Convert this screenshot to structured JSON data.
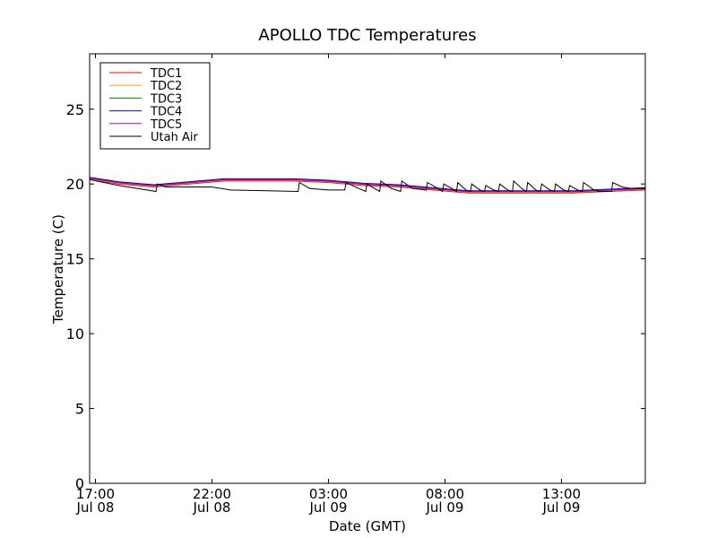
{
  "chart_data": {
    "type": "line",
    "title": "APOLLO TDC Temperatures",
    "xlabel": "Date (GMT)",
    "ylabel": "Temperature (C)",
    "ylim": [
      0,
      28.7
    ],
    "xlim_hours": [
      16.75,
      40.6
    ],
    "y_ticks": [
      0,
      5,
      10,
      15,
      20,
      25
    ],
    "x_ticks": [
      {
        "hour": 17,
        "label1": "17:00",
        "label2": "Jul 08"
      },
      {
        "hour": 22,
        "label1": "22:00",
        "label2": "Jul 08"
      },
      {
        "hour": 27,
        "label1": "03:00",
        "label2": "Jul 09"
      },
      {
        "hour": 32,
        "label1": "08:00",
        "label2": "Jul 09"
      },
      {
        "hour": 37,
        "label1": "13:00",
        "label2": "Jul 09"
      }
    ],
    "legend_position": "top-left",
    "series": [
      {
        "name": "TDC1",
        "color": "#ff0000",
        "points": [
          [
            16.75,
            20.3
          ],
          [
            18,
            20.0
          ],
          [
            19.5,
            19.8
          ],
          [
            21,
            20.0
          ],
          [
            22.5,
            20.2
          ],
          [
            24,
            20.2
          ],
          [
            25.5,
            20.2
          ],
          [
            27,
            20.1
          ],
          [
            28.5,
            19.9
          ],
          [
            30,
            19.8
          ],
          [
            31.5,
            19.6
          ],
          [
            33,
            19.4
          ],
          [
            34.5,
            19.4
          ],
          [
            36,
            19.4
          ],
          [
            37.5,
            19.4
          ],
          [
            39,
            19.5
          ],
          [
            40.6,
            19.6
          ]
        ]
      },
      {
        "name": "TDC2",
        "color": "#ffa500",
        "points": [
          [
            16.75,
            20.35
          ],
          [
            18,
            20.05
          ],
          [
            19.5,
            19.85
          ],
          [
            21,
            20.05
          ],
          [
            22.5,
            20.25
          ],
          [
            24,
            20.25
          ],
          [
            25.5,
            20.25
          ],
          [
            27,
            20.15
          ],
          [
            28.5,
            19.95
          ],
          [
            30,
            19.85
          ],
          [
            31.5,
            19.65
          ],
          [
            33,
            19.45
          ],
          [
            34.5,
            19.45
          ],
          [
            36,
            19.45
          ],
          [
            37.5,
            19.45
          ],
          [
            39,
            19.55
          ],
          [
            40.6,
            19.65
          ]
        ]
      },
      {
        "name": "TDC3",
        "color": "#008000",
        "points": [
          [
            16.75,
            20.4
          ],
          [
            18,
            20.1
          ],
          [
            19.5,
            19.9
          ],
          [
            21,
            20.1
          ],
          [
            22.5,
            20.3
          ],
          [
            24,
            20.3
          ],
          [
            25.5,
            20.3
          ],
          [
            27,
            20.2
          ],
          [
            28.5,
            20.0
          ],
          [
            30,
            19.9
          ],
          [
            31.5,
            19.7
          ],
          [
            33,
            19.5
          ],
          [
            34.5,
            19.5
          ],
          [
            36,
            19.5
          ],
          [
            37.5,
            19.5
          ],
          [
            39,
            19.6
          ],
          [
            40.6,
            19.7
          ]
        ]
      },
      {
        "name": "TDC4",
        "color": "#0000ff",
        "points": [
          [
            16.75,
            20.45
          ],
          [
            18,
            20.15
          ],
          [
            19.5,
            19.95
          ],
          [
            21,
            20.15
          ],
          [
            22.5,
            20.35
          ],
          [
            24,
            20.35
          ],
          [
            25.5,
            20.35
          ],
          [
            27,
            20.25
          ],
          [
            28.5,
            20.05
          ],
          [
            30,
            19.95
          ],
          [
            31.5,
            19.75
          ],
          [
            33,
            19.55
          ],
          [
            34.5,
            19.55
          ],
          [
            36,
            19.55
          ],
          [
            37.5,
            19.55
          ],
          [
            39,
            19.65
          ],
          [
            40.6,
            19.75
          ]
        ]
      },
      {
        "name": "TDC5",
        "color": "#bf00bf",
        "points": [
          [
            16.75,
            20.38
          ],
          [
            18,
            20.08
          ],
          [
            19.5,
            19.88
          ],
          [
            21,
            20.08
          ],
          [
            22.5,
            20.28
          ],
          [
            24,
            20.28
          ],
          [
            25.5,
            20.28
          ],
          [
            27,
            20.18
          ],
          [
            28.5,
            19.98
          ],
          [
            30,
            19.88
          ],
          [
            31.5,
            19.68
          ],
          [
            33,
            19.48
          ],
          [
            34.5,
            19.48
          ],
          [
            36,
            19.48
          ],
          [
            37.5,
            19.48
          ],
          [
            39,
            19.58
          ],
          [
            40.6,
            19.68
          ]
        ]
      },
      {
        "name": "Utah Air",
        "color": "#000000",
        "points": [
          [
            16.75,
            20.3
          ],
          [
            18,
            19.9
          ],
          [
            19.6,
            19.5
          ],
          [
            19.65,
            20.0
          ],
          [
            20,
            19.8
          ],
          [
            21,
            19.8
          ],
          [
            22,
            19.8
          ],
          [
            22.8,
            19.6
          ],
          [
            25.7,
            19.5
          ],
          [
            25.75,
            20.1
          ],
          [
            26.2,
            19.7
          ],
          [
            27,
            19.6
          ],
          [
            27.7,
            19.6
          ],
          [
            27.75,
            20.1
          ],
          [
            28.3,
            19.7
          ],
          [
            28.6,
            19.5
          ],
          [
            28.65,
            20.0
          ],
          [
            29.1,
            19.6
          ],
          [
            29.2,
            19.5
          ],
          [
            29.25,
            20.2
          ],
          [
            29.7,
            19.7
          ],
          [
            29.9,
            19.6
          ],
          [
            30.1,
            19.5
          ],
          [
            30.15,
            20.2
          ],
          [
            30.6,
            19.7
          ],
          [
            31.2,
            19.6
          ],
          [
            31.25,
            20.1
          ],
          [
            31.7,
            19.7
          ],
          [
            31.9,
            19.5
          ],
          [
            31.95,
            20.0
          ],
          [
            32.3,
            19.7
          ],
          [
            32.5,
            19.5
          ],
          [
            32.55,
            20.1
          ],
          [
            32.9,
            19.6
          ],
          [
            33.1,
            19.5
          ],
          [
            33.15,
            20.0
          ],
          [
            33.5,
            19.6
          ],
          [
            33.7,
            19.5
          ],
          [
            33.75,
            19.9
          ],
          [
            34.1,
            19.6
          ],
          [
            34.3,
            19.5
          ],
          [
            34.35,
            20.0
          ],
          [
            34.7,
            19.6
          ],
          [
            34.9,
            19.5
          ],
          [
            34.95,
            20.2
          ],
          [
            35.3,
            19.7
          ],
          [
            35.5,
            19.5
          ],
          [
            35.55,
            20.1
          ],
          [
            35.9,
            19.6
          ],
          [
            36.1,
            19.5
          ],
          [
            36.15,
            20.0
          ],
          [
            36.5,
            19.6
          ],
          [
            36.7,
            19.5
          ],
          [
            36.75,
            20.0
          ],
          [
            37.1,
            19.6
          ],
          [
            37.3,
            19.5
          ],
          [
            37.35,
            19.9
          ],
          [
            37.7,
            19.6
          ],
          [
            37.9,
            19.5
          ],
          [
            37.95,
            20.1
          ],
          [
            38.4,
            19.6
          ],
          [
            38.6,
            19.5
          ],
          [
            39.15,
            19.5
          ],
          [
            39.2,
            20.1
          ],
          [
            39.6,
            19.8
          ],
          [
            40.0,
            19.7
          ],
          [
            40.6,
            19.7
          ]
        ]
      }
    ]
  }
}
